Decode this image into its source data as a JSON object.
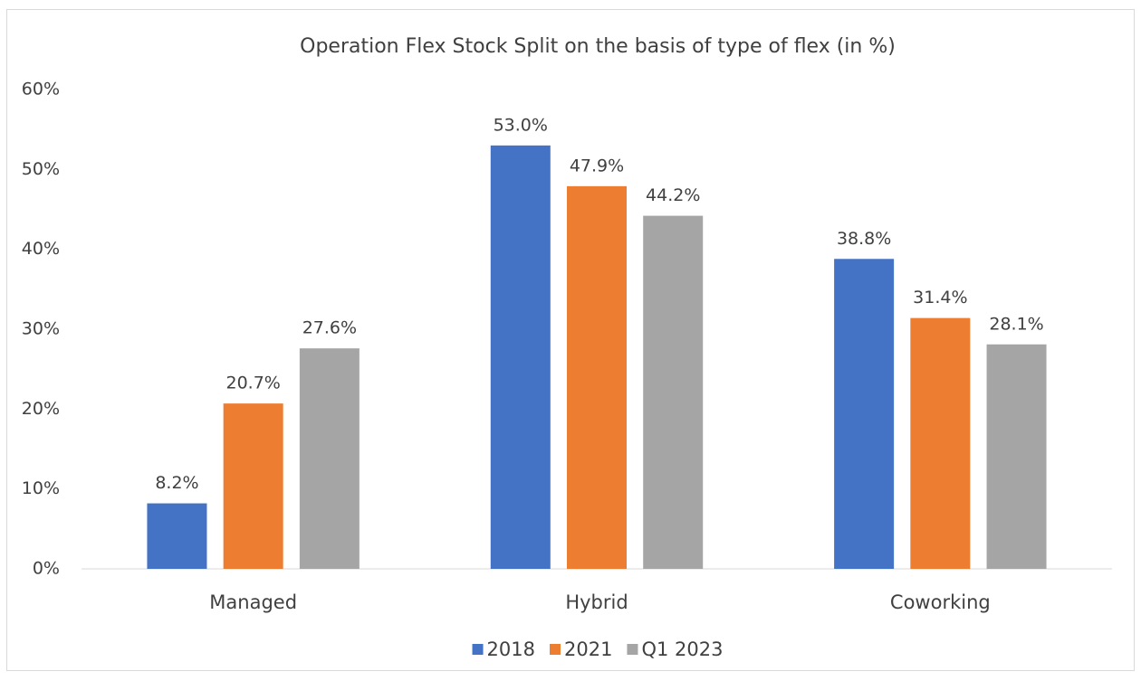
{
  "chart_data": {
    "type": "bar",
    "title": "Operation Flex Stock Split on the basis of type of flex (in %)",
    "categories": [
      "Managed",
      "Hybrid",
      "Coworking"
    ],
    "series": [
      {
        "name": "2018",
        "color": "#4472c4",
        "values": [
          8.2,
          53.0,
          38.8
        ],
        "value_labels": [
          "8.2%",
          "53.0%",
          "38.8%"
        ]
      },
      {
        "name": "2021",
        "color": "#ed7d31",
        "values": [
          20.7,
          47.9,
          31.4
        ],
        "value_labels": [
          "20.7%",
          "47.9%",
          "31.4%"
        ]
      },
      {
        "name": "Q1 2023",
        "color": "#a5a5a5",
        "values": [
          27.6,
          44.2,
          28.1
        ],
        "value_labels": [
          "27.6%",
          "44.2%",
          "28.1%"
        ]
      }
    ],
    "ylim": [
      0,
      60
    ],
    "yticks": [
      {
        "value": 0,
        "label": "0%"
      },
      {
        "value": 10,
        "label": "10%"
      },
      {
        "value": 20,
        "label": "20%"
      },
      {
        "value": 30,
        "label": "30%"
      },
      {
        "value": 40,
        "label": "40%"
      },
      {
        "value": 50,
        "label": "50%"
      },
      {
        "value": 60,
        "label": "60%"
      }
    ],
    "grid": false,
    "legend": "bottom"
  }
}
